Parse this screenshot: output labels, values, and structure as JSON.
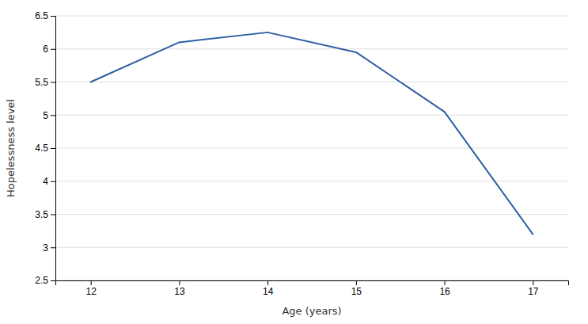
{
  "chart_data": {
    "type": "line",
    "x": [
      12,
      13,
      14,
      15,
      16,
      17
    ],
    "values": [
      5.5,
      6.1,
      6.25,
      5.95,
      5.05,
      3.2
    ],
    "color": "#2E5FA3",
    "xlabel": "Age (years)",
    "ylabel": "Hopelessness level",
    "xlim": [
      11.6,
      17.4
    ],
    "ylim": [
      2.5,
      6.5
    ],
    "xticks": [
      12,
      13,
      14,
      15,
      16,
      17
    ],
    "yticks": [
      2.5,
      3,
      3.5,
      4,
      4.5,
      5,
      5.5,
      6,
      6.5
    ],
    "grid": "y"
  }
}
